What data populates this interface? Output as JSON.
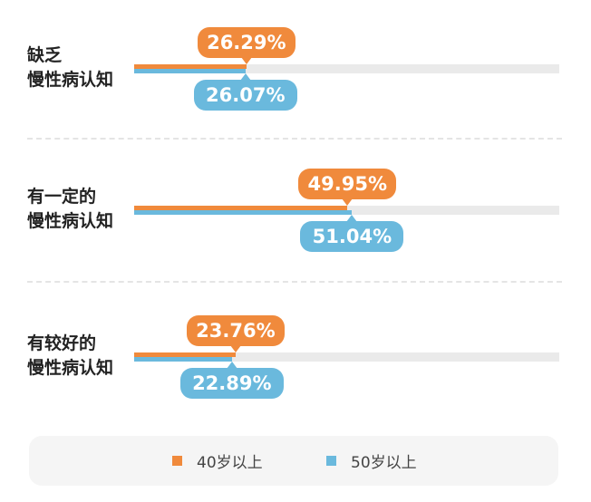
{
  "chart_data": {
    "type": "bar",
    "orientation": "horizontal",
    "xlim": [
      0,
      100
    ],
    "categories": [
      {
        "line1": "缺乏",
        "line2": "慢性病认知"
      },
      {
        "line1": "有一定的",
        "line2": "慢性病认知"
      },
      {
        "line1": "有较好的",
        "line2": "慢性病认知"
      }
    ],
    "series": [
      {
        "name": "40岁以上",
        "color": "#f08a3c",
        "values": [
          26.29,
          49.95,
          23.76
        ],
        "labels": [
          "26.29%",
          "49.95%",
          "23.76%"
        ]
      },
      {
        "name": "50岁以上",
        "color": "#6ab9dd",
        "values": [
          26.07,
          51.04,
          22.89
        ],
        "labels": [
          "26.07%",
          "51.04%",
          "22.89%"
        ]
      }
    ],
    "legend": {
      "placement": "bottom"
    }
  }
}
